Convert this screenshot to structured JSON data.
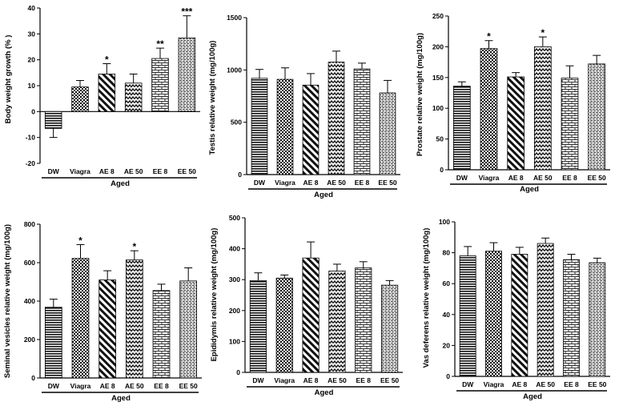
{
  "chart_data": [
    {
      "type": "bar",
      "ylabel": "Body weight growth (% )",
      "group_label": "Aged",
      "categories": [
        "DW",
        "Viagra",
        "AE 8",
        "AE 50",
        "EE 8",
        "EE 50"
      ],
      "values": [
        -6.5,
        9.5,
        14.5,
        11,
        20.5,
        28.5
      ],
      "errors": [
        3.5,
        2.5,
        4,
        3.5,
        4,
        8.5
      ],
      "significance": [
        "",
        "",
        "*",
        "",
        "**",
        "***"
      ],
      "ylim": [
        -20,
        40
      ],
      "yticks": [
        "-20",
        "-10",
        "0",
        "10",
        "20",
        "30",
        "40"
      ]
    },
    {
      "type": "bar",
      "ylabel": "Testis relative weight (mg/100g)",
      "group_label": "Aged",
      "categories": [
        "DW",
        "Viagra",
        "AE 8",
        "AE 50",
        "EE 8",
        "EE 50"
      ],
      "values": [
        920,
        910,
        855,
        1075,
        1010,
        780
      ],
      "errors": [
        85,
        110,
        110,
        105,
        55,
        120
      ],
      "significance": [
        "",
        "",
        "",
        "",
        "",
        ""
      ],
      "ylim": [
        0,
        1500
      ],
      "yticks": [
        "0",
        "500",
        "1000",
        "1500"
      ]
    },
    {
      "type": "bar",
      "ylabel": "Prostate relative weight (mg/100g)",
      "group_label": "Aged",
      "categories": [
        "DW",
        "Viagra",
        "AE 8",
        "AE 50",
        "EE 8",
        "EE 50"
      ],
      "values": [
        136,
        197,
        151,
        200,
        149,
        172
      ],
      "errors": [
        7,
        13,
        7,
        16,
        20,
        14
      ],
      "significance": [
        "",
        "*",
        "",
        "*",
        "",
        ""
      ],
      "ylim": [
        0,
        250
      ],
      "yticks": [
        "0",
        "50",
        "100",
        "150",
        "200",
        "250"
      ]
    },
    {
      "type": "bar",
      "ylabel": "Seminal vesicles relative weight (mg/100g)",
      "group_label": "Aged",
      "categories": [
        "DW",
        "Viagra",
        "AE 8",
        "AE 50",
        "EE 8",
        "EE 50"
      ],
      "values": [
        368,
        622,
        510,
        614,
        455,
        505
      ],
      "errors": [
        42,
        72,
        48,
        48,
        33,
        68
      ],
      "significance": [
        "",
        "*",
        "",
        "*",
        "",
        ""
      ],
      "ylim": [
        0,
        800
      ],
      "yticks": [
        "0",
        "200",
        "400",
        "600",
        "800"
      ]
    },
    {
      "type": "bar",
      "ylabel": "Epididymis relative weight (mg/100g)",
      "group_label": "Aged",
      "categories": [
        "DW",
        "Viagra",
        "AE 8",
        "AE 50",
        "EE 8",
        "EE 50"
      ],
      "values": [
        297,
        305,
        370,
        328,
        338,
        282
      ],
      "errors": [
        25,
        10,
        52,
        22,
        20,
        15
      ],
      "significance": [
        "",
        "",
        "",
        "",
        "",
        ""
      ],
      "ylim": [
        0,
        500
      ],
      "yticks": [
        "0",
        "100",
        "200",
        "300",
        "400",
        "500"
      ]
    },
    {
      "type": "bar",
      "ylabel": "Vas deferens relative weight (mg/100g)",
      "group_label": "Aged",
      "categories": [
        "DW",
        "Viagra",
        "AE 8",
        "AE 50",
        "EE 8",
        "EE 50"
      ],
      "values": [
        78,
        81,
        79,
        86,
        75.5,
        73.5
      ],
      "errors": [
        6,
        5.5,
        4.5,
        3.5,
        3.5,
        3
      ],
      "significance": [
        "",
        "",
        "",
        "",
        "",
        ""
      ],
      "ylim": [
        0,
        100
      ],
      "yticks": [
        "0",
        "20",
        "40",
        "60",
        "80",
        "100"
      ]
    }
  ]
}
